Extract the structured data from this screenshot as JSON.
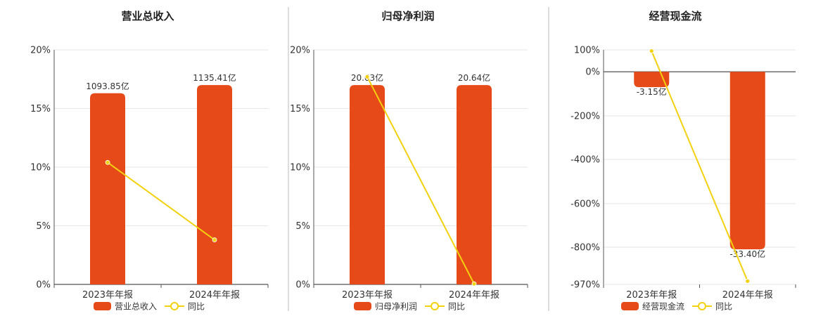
{
  "colors": {
    "bar": "#E64A19",
    "line": "#F2D10F",
    "grid": "#E6E6E6",
    "axis": "#555555",
    "divider": "#BBBBBB"
  },
  "chart_data": [
    {
      "type": "bar",
      "title": "营业总收入",
      "categories": [
        "2023年年报",
        "2024年年报"
      ],
      "y_ticks": [
        "0%",
        "5%",
        "10%",
        "15%",
        "20%"
      ],
      "ylim": [
        0,
        20
      ],
      "bar_series": {
        "name": "营业总收入",
        "values_pct": [
          16.3,
          17.0
        ],
        "labels": [
          "1093.85亿",
          "1135.41亿"
        ]
      },
      "line_series": {
        "name": "同比",
        "values_pct": [
          10.4,
          3.8
        ]
      }
    },
    {
      "type": "bar",
      "title": "归母净利润",
      "categories": [
        "2023年年报",
        "2024年年报"
      ],
      "y_ticks": [
        "0%",
        "5%",
        "10%",
        "15%",
        "20%"
      ],
      "ylim": [
        0,
        20
      ],
      "bar_series": {
        "name": "归母净利润",
        "values_pct": [
          17.0,
          17.0
        ],
        "labels": [
          "20.63亿",
          "20.64亿"
        ]
      },
      "line_series": {
        "name": "同比",
        "values_pct": [
          17.7,
          0.05
        ]
      }
    },
    {
      "type": "bar",
      "title": "经营现金流",
      "categories": [
        "2023年年报",
        "2024年年报"
      ],
      "y_ticks": [
        "100%",
        "0%",
        "-200%",
        "-400%",
        "-600%",
        "-800%",
        "-970%"
      ],
      "ylim": [
        -970,
        100
      ],
      "bar_series": {
        "name": "经营现金流",
        "values_pct": [
          -70,
          -810
        ],
        "labels": [
          "-3.15亿",
          "-33.40亿"
        ]
      },
      "line_series": {
        "name": "同比",
        "values_pct": [
          95,
          -955
        ]
      }
    }
  ]
}
